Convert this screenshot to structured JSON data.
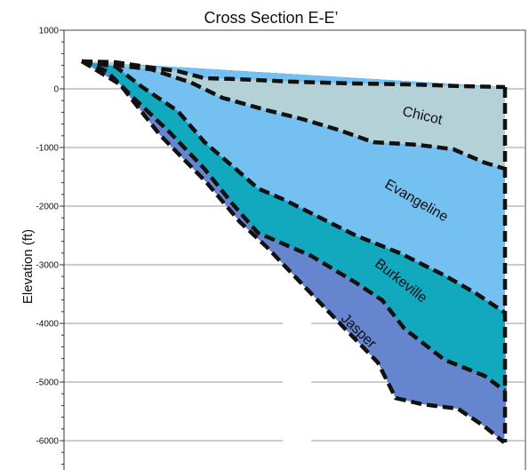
{
  "title": "Cross Section E-E’",
  "y_axis": {
    "label": "Elevation (ft)",
    "unit": "ft",
    "min": -6500,
    "max": 1000,
    "major_ticks": [
      1000,
      0,
      -1000,
      -2000,
      -3000,
      -4000,
      -5000,
      -6000
    ],
    "tick_labels": [
      "1000",
      "0",
      "-1000",
      "-2000",
      "-3000",
      "-4000",
      "-5000",
      "-6000"
    ],
    "minor_tick_step": 200
  },
  "grid": true,
  "units": [
    {
      "id": "chicot",
      "name": "Chicot",
      "color": "#b5d1d8"
    },
    {
      "id": "evangeline",
      "name": "Evangeline",
      "color": "#74c0f0"
    },
    {
      "id": "burkeville",
      "name": "Burkeville",
      "color": "#12a9bf"
    },
    {
      "id": "jasper",
      "name": "Jasper",
      "color": "#6585ce"
    }
  ],
  "contact_line_color": "#111111",
  "gridline_color": "#9a9a9a"
}
